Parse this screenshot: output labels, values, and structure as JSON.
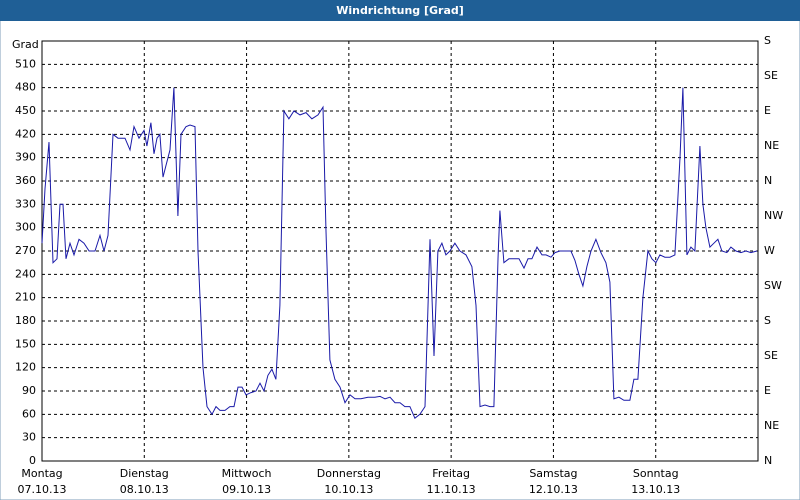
{
  "chart_data": {
    "type": "line",
    "title": "Windrichtung [Grad]",
    "ylabel": "Grad",
    "x": [
      0,
      0.029,
      0.068,
      0.108,
      0.147,
      0.176,
      0.205,
      0.235,
      0.274,
      0.313,
      0.362,
      0.411,
      0.46,
      0.518,
      0.567,
      0.606,
      0.645,
      0.694,
      0.743,
      0.811,
      0.86,
      0.899,
      0.948,
      0.997,
      1.026,
      1.065,
      1.095,
      1.124,
      1.153,
      1.183,
      1.212,
      1.251,
      1.29,
      1.329,
      1.359,
      1.408,
      1.447,
      1.496,
      1.525,
      1.574,
      1.613,
      1.662,
      1.701,
      1.74,
      1.789,
      1.837,
      1.877,
      1.916,
      1.955,
      1.994,
      2.043,
      2.092,
      2.131,
      2.17,
      2.209,
      2.248,
      2.287,
      2.326,
      2.365,
      2.414,
      2.463,
      2.522,
      2.581,
      2.639,
      2.698,
      2.747,
      2.776,
      2.815,
      2.864,
      2.913,
      2.962,
      3.011,
      3.06,
      3.118,
      3.187,
      3.255,
      3.304,
      3.353,
      3.402,
      3.451,
      3.5,
      3.548,
      3.597,
      3.646,
      3.695,
      3.744,
      3.793,
      3.832,
      3.871,
      3.91,
      3.949,
      3.988,
      4.037,
      4.086,
      4.145,
      4.203,
      4.243,
      4.282,
      4.331,
      4.379,
      4.418,
      4.458,
      4.477,
      4.516,
      4.565,
      4.614,
      4.663,
      4.712,
      4.751,
      4.79,
      4.839,
      4.888,
      4.927,
      4.976,
      5.015,
      5.063,
      5.122,
      5.171,
      5.21,
      5.249,
      5.288,
      5.327,
      5.367,
      5.415,
      5.464,
      5.513,
      5.552,
      5.591,
      5.64,
      5.689,
      5.748,
      5.787,
      5.826,
      5.875,
      5.924,
      5.963,
      6.002,
      6.041,
      6.09,
      6.139,
      6.188,
      6.237,
      6.266,
      6.305,
      6.344,
      6.383,
      6.432,
      6.461,
      6.491,
      6.53,
      6.569,
      6.608,
      6.647,
      6.696,
      6.735,
      6.784,
      6.833,
      6.882,
      6.931,
      6.99
    ],
    "series": [
      {
        "color": "#1a1aa8",
        "values": [
          280,
          350,
          410,
          255,
          260,
          330,
          330,
          260,
          280,
          265,
          285,
          280,
          270,
          270,
          290,
          270,
          290,
          420,
          415,
          415,
          400,
          430,
          415,
          425,
          405,
          435,
          395,
          415,
          420,
          365,
          380,
          400,
          480,
          315,
          420,
          430,
          432,
          430,
          270,
          120,
          70,
          60,
          70,
          65,
          65,
          70,
          70,
          95,
          95,
          85,
          88,
          90,
          100,
          90,
          110,
          118,
          105,
          200,
          450,
          440,
          450,
          445,
          448,
          440,
          445,
          455,
          300,
          130,
          105,
          95,
          75,
          85,
          80,
          80,
          82,
          82,
          83,
          80,
          82,
          75,
          75,
          70,
          70,
          55,
          60,
          70,
          285,
          135,
          270,
          280,
          265,
          270,
          280,
          270,
          265,
          250,
          200,
          70,
          72,
          70,
          70,
          260,
          322,
          255,
          260,
          260,
          260,
          248,
          260,
          260,
          275,
          265,
          265,
          262,
          268,
          270,
          270,
          270,
          258,
          240,
          225,
          250,
          270,
          285,
          268,
          255,
          230,
          80,
          82,
          78,
          78,
          105,
          105,
          210,
          270,
          260,
          255,
          265,
          262,
          262,
          265,
          390,
          480,
          265,
          275,
          270,
          405,
          330,
          300,
          275,
          280,
          285,
          270,
          268,
          275,
          270,
          268,
          270,
          268,
          270
        ]
      }
    ],
    "xlim": [
      0,
      7
    ],
    "xticks": [
      {
        "value": 0,
        "label": "Montag"
      },
      {
        "value": 1,
        "label": "Dienstag"
      },
      {
        "value": 2,
        "label": "Mittwoch"
      },
      {
        "value": 3,
        "label": "Donnerstag"
      },
      {
        "value": 4,
        "label": "Freitag"
      },
      {
        "value": 5,
        "label": "Samstag"
      },
      {
        "value": 6,
        "label": "Sonntag"
      }
    ],
    "xtick_dates": [
      "07.10.13",
      "08.10.13",
      "09.10.13",
      "10.10.13",
      "11.10.13",
      "12.10.13",
      "13.10.13"
    ],
    "ylim": [
      0,
      540
    ],
    "yticks": [
      0,
      30,
      60,
      90,
      120,
      150,
      180,
      210,
      240,
      270,
      300,
      330,
      360,
      390,
      420,
      450,
      480,
      510
    ],
    "y2lim": [
      0,
      540
    ],
    "y2ticks": [
      {
        "value": 0,
        "label": "N"
      },
      {
        "value": 45,
        "label": "NE"
      },
      {
        "value": 90,
        "label": "E"
      },
      {
        "value": 135,
        "label": "SE"
      },
      {
        "value": 180,
        "label": "S"
      },
      {
        "value": 225,
        "label": "SW"
      },
      {
        "value": 270,
        "label": "W"
      },
      {
        "value": 315,
        "label": "NW"
      },
      {
        "value": 360,
        "label": "N"
      },
      {
        "value": 405,
        "label": "NE"
      },
      {
        "value": 450,
        "label": "E"
      },
      {
        "value": 495,
        "label": "SE"
      },
      {
        "value": 540,
        "label": "S"
      }
    ],
    "grid": true
  }
}
